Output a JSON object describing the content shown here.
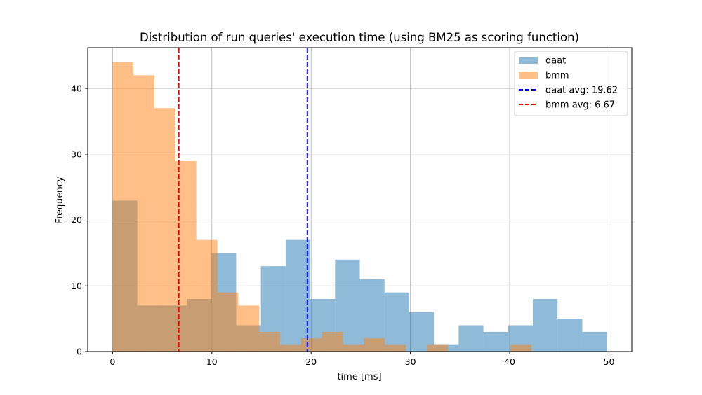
{
  "chart_data": {
    "type": "histogram",
    "title": "Distribution of run queries' execution time (using BM25 as scoring function)",
    "xlabel": "time [ms]",
    "ylabel": "Frequency",
    "xlim": [
      -2.5,
      52.3
    ],
    "ylim": [
      0,
      46.2
    ],
    "xticks": [
      0,
      10,
      20,
      30,
      40,
      50
    ],
    "yticks": [
      0,
      10,
      20,
      30,
      40
    ],
    "grid": true,
    "legend_position": "top-right",
    "series": [
      {
        "name": "daat",
        "color": "#1f77b4",
        "alpha": 0.5,
        "bins": [
          {
            "start": 0.0,
            "end": 2.49,
            "count": 23
          },
          {
            "start": 2.49,
            "end": 4.98,
            "count": 7
          },
          {
            "start": 4.98,
            "end": 7.47,
            "count": 7
          },
          {
            "start": 7.47,
            "end": 9.96,
            "count": 8
          },
          {
            "start": 9.96,
            "end": 12.45,
            "count": 15
          },
          {
            "start": 12.45,
            "end": 14.94,
            "count": 4
          },
          {
            "start": 14.94,
            "end": 17.43,
            "count": 13
          },
          {
            "start": 17.43,
            "end": 19.92,
            "count": 17
          },
          {
            "start": 19.92,
            "end": 22.41,
            "count": 8
          },
          {
            "start": 22.41,
            "end": 24.9,
            "count": 14
          },
          {
            "start": 24.9,
            "end": 27.39,
            "count": 11
          },
          {
            "start": 27.39,
            "end": 29.88,
            "count": 9
          },
          {
            "start": 29.88,
            "end": 32.37,
            "count": 6
          },
          {
            "start": 32.37,
            "end": 34.86,
            "count": 1
          },
          {
            "start": 34.86,
            "end": 37.35,
            "count": 4
          },
          {
            "start": 37.35,
            "end": 39.84,
            "count": 3
          },
          {
            "start": 39.84,
            "end": 42.33,
            "count": 4
          },
          {
            "start": 42.33,
            "end": 44.82,
            "count": 8
          },
          {
            "start": 44.82,
            "end": 47.31,
            "count": 5
          },
          {
            "start": 47.31,
            "end": 49.8,
            "count": 3
          }
        ]
      },
      {
        "name": "bmm",
        "color": "#ff7f0e",
        "alpha": 0.5,
        "bins": [
          {
            "start": 0.0,
            "end": 2.11,
            "count": 44
          },
          {
            "start": 2.11,
            "end": 4.22,
            "count": 42
          },
          {
            "start": 4.22,
            "end": 6.33,
            "count": 37
          },
          {
            "start": 6.33,
            "end": 8.44,
            "count": 29
          },
          {
            "start": 8.44,
            "end": 10.55,
            "count": 17
          },
          {
            "start": 10.55,
            "end": 12.66,
            "count": 9
          },
          {
            "start": 12.66,
            "end": 14.77,
            "count": 7
          },
          {
            "start": 14.77,
            "end": 16.88,
            "count": 3
          },
          {
            "start": 16.88,
            "end": 18.99,
            "count": 1
          },
          {
            "start": 18.99,
            "end": 21.1,
            "count": 2
          },
          {
            "start": 21.1,
            "end": 23.21,
            "count": 3
          },
          {
            "start": 23.21,
            "end": 25.32,
            "count": 1
          },
          {
            "start": 25.32,
            "end": 27.43,
            "count": 2
          },
          {
            "start": 27.43,
            "end": 29.54,
            "count": 1
          },
          {
            "start": 29.54,
            "end": 31.65,
            "count": 0
          },
          {
            "start": 31.65,
            "end": 33.76,
            "count": 1
          },
          {
            "start": 33.76,
            "end": 35.87,
            "count": 0
          },
          {
            "start": 35.87,
            "end": 37.98,
            "count": 0
          },
          {
            "start": 37.98,
            "end": 40.09,
            "count": 0
          },
          {
            "start": 40.09,
            "end": 42.2,
            "count": 1
          }
        ]
      }
    ],
    "reference_lines": [
      {
        "label": "daat avg: 19.62",
        "x": 19.62,
        "color": "#0000ff",
        "style": "dashed"
      },
      {
        "label": "bmm avg: 6.67",
        "x": 6.67,
        "color": "#ff0000",
        "style": "dashed"
      }
    ]
  }
}
